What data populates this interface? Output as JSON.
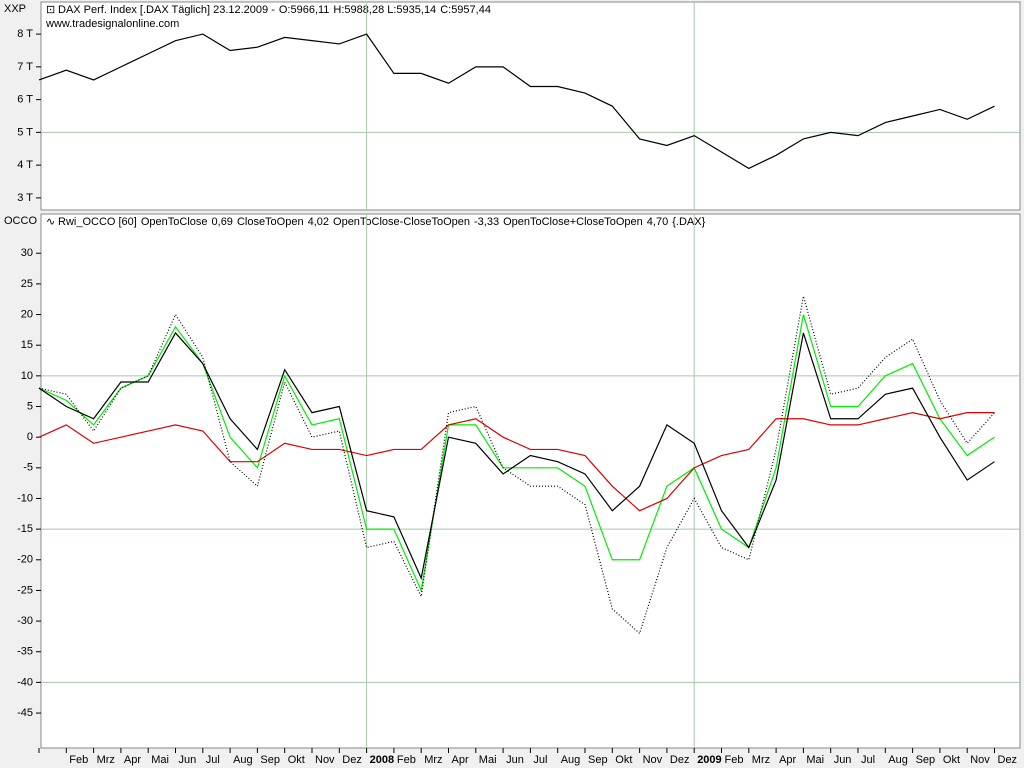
{
  "header": {
    "price_axis_name": "XXP",
    "indicator_axis_name": "OCCO",
    "price_title": "DAX Perf. Index [.DAX  Täglich] 23.12.2009 -",
    "price_open": "O:5966,11",
    "price_hlc": "H:5988,28 L:5935,14",
    "price_close": "C:5957,44",
    "website": "www.tradesignalonline.com",
    "indicator_title": "Rwi_OCCO [60]",
    "indicator_source": "{.DAX}"
  },
  "chart_data": [
    {
      "type": "line",
      "categories": [
        null,
        "Feb",
        "Mrz",
        "Apr",
        "Mai",
        "Jun",
        "Jul",
        "Aug",
        "Sep",
        "Okt",
        "Nov",
        "Dez",
        "2008",
        "Feb",
        "Mrz",
        "Apr",
        "Mai",
        "Jun",
        "Jul",
        "Aug",
        "Sep",
        "Okt",
        "Nov",
        "Dez",
        "2009",
        "Feb",
        "Mrz",
        "Apr",
        "Mai",
        "Jun",
        "Jul",
        "Aug",
        "Sep",
        "Okt",
        "Nov",
        "Dez"
      ],
      "series": [
        {
          "name": "DAX Perf. Index",
          "color": "#000000",
          "values": [
            6600,
            6900,
            6600,
            7000,
            7400,
            7800,
            8000,
            7500,
            7600,
            7900,
            7800,
            7700,
            8000,
            6800,
            6800,
            6500,
            7000,
            7000,
            6400,
            6400,
            6200,
            5800,
            4800,
            4600,
            4900,
            4400,
            3900,
            4300,
            4800,
            5000,
            4900,
            5300,
            5500,
            5700,
            5400,
            5800
          ]
        }
      ],
      "ylim": [
        2630,
        8980
      ],
      "yticks": [
        {
          "value": 3000,
          "label": "3 T"
        },
        {
          "value": 4000,
          "label": "4 T"
        },
        {
          "value": 5000,
          "label": "5 T"
        },
        {
          "value": 6000,
          "label": "6 T"
        },
        {
          "value": 7000,
          "label": "7 T"
        },
        {
          "value": 8000,
          "label": "8 T"
        }
      ],
      "grid_y": [
        5000
      ],
      "grid_x": [
        12,
        24
      ]
    },
    {
      "type": "line",
      "categories": [
        null,
        "Feb",
        "Mrz",
        "Apr",
        "Mai",
        "Jun",
        "Jul",
        "Aug",
        "Sep",
        "Okt",
        "Nov",
        "Dez",
        "2008",
        "Feb",
        "Mrz",
        "Apr",
        "Mai",
        "Jun",
        "Jul",
        "Aug",
        "Sep",
        "Okt",
        "Nov",
        "Dez",
        "2009",
        "Feb",
        "Mrz",
        "Apr",
        "Mai",
        "Jun",
        "Jul",
        "Aug",
        "Sep",
        "Okt",
        "Nov",
        "Dez"
      ],
      "series": [
        {
          "name": "OpenToClose",
          "last_label": "0,69",
          "color": "#00ee00",
          "style": "solid",
          "values": [
            8,
            6,
            2,
            8,
            10,
            18,
            12,
            0,
            -5,
            10,
            2,
            3,
            -15,
            -15,
            -25,
            2,
            2,
            -5,
            -5,
            -5,
            -8,
            -20,
            -20,
            -8,
            -5,
            -15,
            -18,
            -5,
            20,
            5,
            5,
            10,
            12,
            3,
            -3,
            0
          ]
        },
        {
          "name": "CloseToOpen",
          "last_label": "4,02",
          "color": "#dd0000",
          "style": "solid",
          "values": [
            0,
            2,
            -1,
            0,
            1,
            2,
            1,
            -4,
            -4,
            -1,
            -2,
            -2,
            -3,
            -2,
            -2,
            2,
            3,
            0,
            -2,
            -2,
            -3,
            -8,
            -12,
            -10,
            -5,
            -3,
            -2,
            3,
            3,
            2,
            2,
            3,
            4,
            3,
            4,
            4
          ]
        },
        {
          "name": "OpenToClose-CloseToOpen",
          "last_label": "-3,33",
          "color": "#000000",
          "style": "solid",
          "values": [
            8,
            5,
            3,
            9,
            9,
            17,
            12,
            3,
            -2,
            11,
            4,
            5,
            -12,
            -13,
            -23,
            0,
            -1,
            -6,
            -3,
            -4,
            -6,
            -12,
            -8,
            2,
            -1,
            -12,
            -18,
            -7,
            17,
            3,
            3,
            7,
            8,
            0,
            -7,
            -4
          ]
        },
        {
          "name": "OpenToClose+CloseToOpen",
          "last_label": "4,70",
          "color": "#000000",
          "style": "dotted",
          "values": [
            8,
            7,
            1,
            8,
            10,
            20,
            13,
            -4,
            -8,
            9,
            0,
            1,
            -18,
            -17,
            -26,
            4,
            5,
            -5,
            -8,
            -8,
            -11,
            -28,
            -32,
            -18,
            -10,
            -18,
            -20,
            -2,
            23,
            7,
            8,
            13,
            16,
            6,
            -1,
            4
          ]
        }
      ],
      "ylim": [
        -50.7,
        36.4
      ],
      "yticks": [
        -45,
        -40,
        -35,
        -30,
        -25,
        -20,
        -15,
        -10,
        -5,
        0,
        5,
        10,
        15,
        20,
        25,
        30
      ],
      "grid_y": [
        10,
        -15,
        -40
      ],
      "grid_x": [
        12,
        24
      ]
    }
  ]
}
